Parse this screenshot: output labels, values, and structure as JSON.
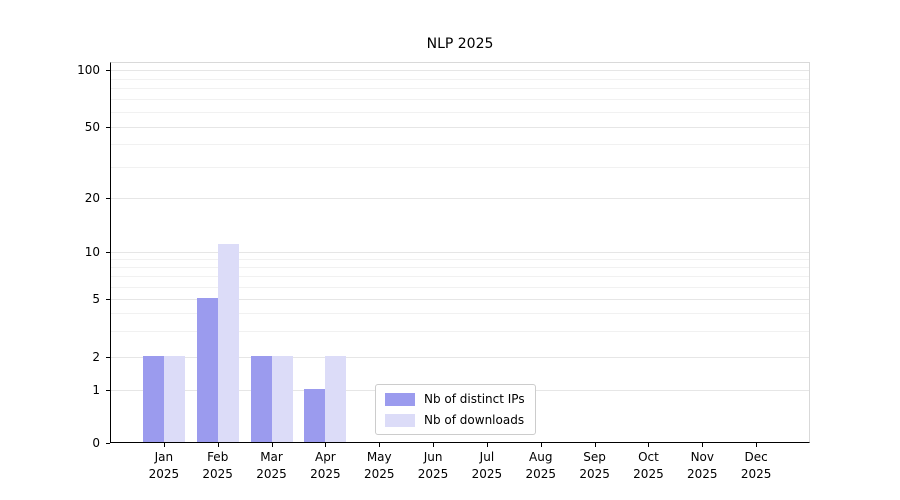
{
  "chart_data": {
    "type": "bar",
    "title": "NLP 2025",
    "categories": [
      {
        "month": "Jan",
        "year": "2025"
      },
      {
        "month": "Feb",
        "year": "2025"
      },
      {
        "month": "Mar",
        "year": "2025"
      },
      {
        "month": "Apr",
        "year": "2025"
      },
      {
        "month": "May",
        "year": "2025"
      },
      {
        "month": "Jun",
        "year": "2025"
      },
      {
        "month": "Jul",
        "year": "2025"
      },
      {
        "month": "Aug",
        "year": "2025"
      },
      {
        "month": "Sep",
        "year": "2025"
      },
      {
        "month": "Oct",
        "year": "2025"
      },
      {
        "month": "Nov",
        "year": "2025"
      },
      {
        "month": "Dec",
        "year": "2025"
      }
    ],
    "series": [
      {
        "name": "Nb of distinct IPs",
        "color": "#9b9bee",
        "values": [
          2,
          5,
          2,
          1,
          0,
          0,
          0,
          0,
          0,
          0,
          0,
          0
        ]
      },
      {
        "name": "Nb of downloads",
        "color": "#dcdcf8",
        "values": [
          2,
          11,
          2,
          2,
          0,
          0,
          0,
          0,
          0,
          0,
          0,
          0
        ]
      }
    ],
    "yscale": "symlog",
    "yticks": [
      0,
      1,
      2,
      5,
      10,
      20,
      50,
      100
    ],
    "minor_gridlines": [
      3,
      4,
      6,
      7,
      8,
      9,
      30,
      40,
      60,
      70,
      80,
      90
    ],
    "ylim": [
      0,
      120
    ],
    "xlabel": "",
    "ylabel": "",
    "grid": "horizontal",
    "legend": {
      "position": "lower center",
      "labels": [
        "Nb of distinct IPs",
        "Nb of downloads"
      ]
    }
  }
}
